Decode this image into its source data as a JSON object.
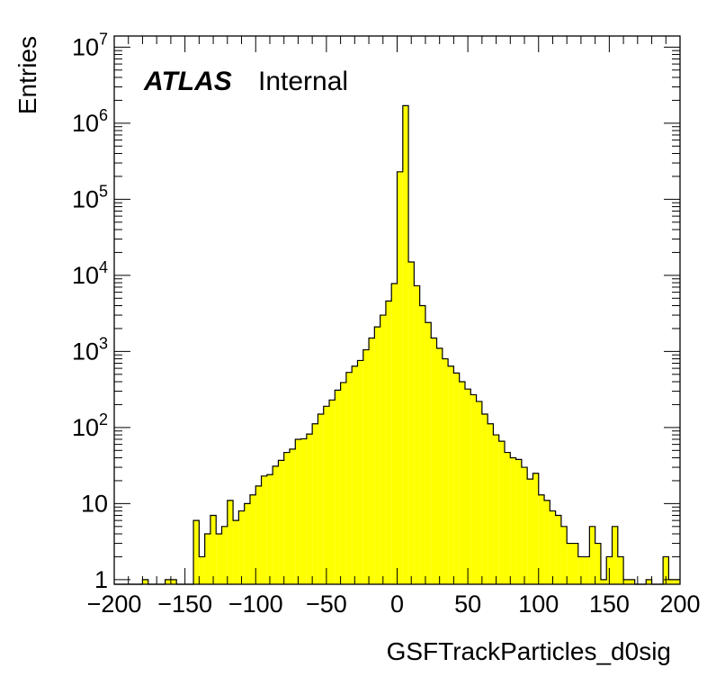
{
  "chart_data": {
    "type": "bar",
    "histogram": true,
    "fill_color": "#ffff00",
    "line_color": "#000000",
    "xlabel": "GSFTrackParticles_d0sig",
    "ylabel": "Entries",
    "xlim": [
      -200,
      200
    ],
    "ylim": [
      0.87,
      14000000
    ],
    "yscale": "log",
    "bin_width": 4,
    "x_ticks": [
      -200,
      -150,
      -100,
      -50,
      0,
      50,
      100,
      150,
      200
    ],
    "x_tick_labels": [
      "−200",
      "−150",
      "−100",
      "−50",
      "0",
      "50",
      "100",
      "150",
      "200"
    ],
    "y_tick_labels": [
      {
        "value": 1,
        "base": "1",
        "exp": ""
      },
      {
        "value": 10,
        "base": "10",
        "exp": ""
      },
      {
        "value": 100,
        "base": "10",
        "exp": "2"
      },
      {
        "value": 1000,
        "base": "10",
        "exp": "3"
      },
      {
        "value": 10000,
        "base": "10",
        "exp": "4"
      },
      {
        "value": 100000,
        "base": "10",
        "exp": "5"
      },
      {
        "value": 1000000,
        "base": "10",
        "exp": "6"
      },
      {
        "value": 10000000,
        "base": "10",
        "exp": "7"
      }
    ],
    "label_atlas": "ATLAS",
    "label_internal": "Internal",
    "bins": [
      {
        "x": -180,
        "y": 1
      },
      {
        "x": -164,
        "y": 1
      },
      {
        "x": -160,
        "y": 1
      },
      {
        "x": -144,
        "y": 6
      },
      {
        "x": -140,
        "y": 2
      },
      {
        "x": -136,
        "y": 4
      },
      {
        "x": -132,
        "y": 7
      },
      {
        "x": -128,
        "y": 4
      },
      {
        "x": -124,
        "y": 5
      },
      {
        "x": -120,
        "y": 11
      },
      {
        "x": -116,
        "y": 6
      },
      {
        "x": -112,
        "y": 8
      },
      {
        "x": -108,
        "y": 10
      },
      {
        "x": -104,
        "y": 13
      },
      {
        "x": -100,
        "y": 17
      },
      {
        "x": -96,
        "y": 23
      },
      {
        "x": -92,
        "y": 24
      },
      {
        "x": -88,
        "y": 31
      },
      {
        "x": -84,
        "y": 37
      },
      {
        "x": -80,
        "y": 47
      },
      {
        "x": -76,
        "y": 52
      },
      {
        "x": -72,
        "y": 70
      },
      {
        "x": -68,
        "y": 71
      },
      {
        "x": -64,
        "y": 82
      },
      {
        "x": -60,
        "y": 112
      },
      {
        "x": -56,
        "y": 150
      },
      {
        "x": -52,
        "y": 190
      },
      {
        "x": -48,
        "y": 230
      },
      {
        "x": -44,
        "y": 310
      },
      {
        "x": -40,
        "y": 390
      },
      {
        "x": -36,
        "y": 530
      },
      {
        "x": -32,
        "y": 640
      },
      {
        "x": -28,
        "y": 760
      },
      {
        "x": -24,
        "y": 1050
      },
      {
        "x": -20,
        "y": 1500
      },
      {
        "x": -16,
        "y": 2100
      },
      {
        "x": -12,
        "y": 3000
      },
      {
        "x": -8,
        "y": 4600
      },
      {
        "x": -4,
        "y": 7800
      },
      {
        "x": 0,
        "y": 230000
      },
      {
        "x": 4,
        "y": 1700000
      },
      {
        "x": 8,
        "y": 15000
      },
      {
        "x": 12,
        "y": 7300
      },
      {
        "x": 16,
        "y": 4000
      },
      {
        "x": 20,
        "y": 2400
      },
      {
        "x": 24,
        "y": 1500
      },
      {
        "x": 28,
        "y": 1100
      },
      {
        "x": 32,
        "y": 800
      },
      {
        "x": 36,
        "y": 640
      },
      {
        "x": 40,
        "y": 520
      },
      {
        "x": 44,
        "y": 400
      },
      {
        "x": 48,
        "y": 320
      },
      {
        "x": 52,
        "y": 270
      },
      {
        "x": 56,
        "y": 220
      },
      {
        "x": 60,
        "y": 150
      },
      {
        "x": 64,
        "y": 112
      },
      {
        "x": 68,
        "y": 80
      },
      {
        "x": 72,
        "y": 66
      },
      {
        "x": 76,
        "y": 47
      },
      {
        "x": 80,
        "y": 40
      },
      {
        "x": 84,
        "y": 38
      },
      {
        "x": 88,
        "y": 30
      },
      {
        "x": 92,
        "y": 21
      },
      {
        "x": 96,
        "y": 25
      },
      {
        "x": 100,
        "y": 13
      },
      {
        "x": 104,
        "y": 11
      },
      {
        "x": 108,
        "y": 8
      },
      {
        "x": 112,
        "y": 7
      },
      {
        "x": 116,
        "y": 5
      },
      {
        "x": 120,
        "y": 3
      },
      {
        "x": 124,
        "y": 3
      },
      {
        "x": 128,
        "y": 2
      },
      {
        "x": 132,
        "y": 2
      },
      {
        "x": 136,
        "y": 5
      },
      {
        "x": 140,
        "y": 3
      },
      {
        "x": 144,
        "y": 1
      },
      {
        "x": 148,
        "y": 2
      },
      {
        "x": 152,
        "y": 5
      },
      {
        "x": 156,
        "y": 2
      },
      {
        "x": 160,
        "y": 1
      },
      {
        "x": 164,
        "y": 1
      },
      {
        "x": 176,
        "y": 1
      },
      {
        "x": 188,
        "y": 2
      },
      {
        "x": 192,
        "y": 1
      },
      {
        "x": 196,
        "y": 1
      }
    ]
  }
}
